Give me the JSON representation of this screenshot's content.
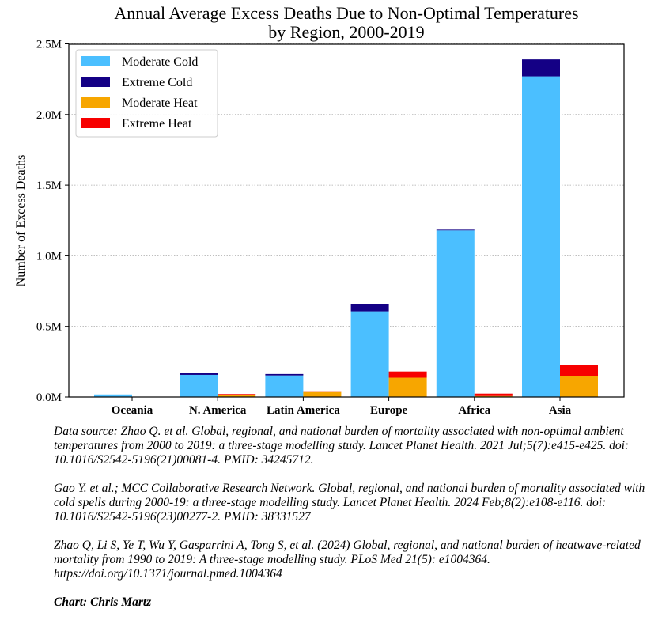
{
  "chart_data": {
    "type": "bar",
    "stacked": true,
    "title": "Annual Average Excess Deaths Due to Non-Optimal Temperatures\nby Region, 2000-2019",
    "title_lines": [
      "Annual Average Excess Deaths Due to Non-Optimal Temperatures",
      "by Region, 2000-2019"
    ],
    "xlabel": "",
    "ylabel": "Number of Excess Deaths",
    "ylim": [
      0,
      2500000
    ],
    "yticks": [
      0,
      500000,
      1000000,
      1500000,
      2000000,
      2500000
    ],
    "ytick_labels": [
      "0.0M",
      "0.5M",
      "1.0M",
      "1.5M",
      "2.0M",
      "2.5M"
    ],
    "grid": "horizontal dotted",
    "legend_position": "top-left",
    "categories": [
      "Oceania",
      "N. America",
      "Latin America",
      "Europe",
      "Africa",
      "Asia"
    ],
    "groups": [
      {
        "group": "cold",
        "series": [
          {
            "name": "Moderate Cold",
            "color": "#4bbfff",
            "values": [
              18000,
              157000,
              153000,
              607000,
              1180000,
              2270000
            ]
          },
          {
            "name": "Extreme Cold",
            "color": "#140085",
            "values": [
              0,
              13000,
              10000,
              50000,
              5000,
              120000
            ]
          }
        ]
      },
      {
        "group": "heat",
        "series": [
          {
            "name": "Moderate Heat",
            "color": "#f7a600",
            "values": [
              500,
              13000,
              35000,
              137000,
              7000,
              148000
            ]
          },
          {
            "name": "Extreme Heat",
            "color": "#f70000",
            "values": [
              200,
              8000,
              1000,
              44000,
              17000,
              78000
            ]
          }
        ]
      }
    ]
  },
  "notes": [
    "Data source: Zhao Q. et al. Global, regional, and national burden of mortality associated with non-optimal ambient temperatures from 2000 to 2019: a three-stage modelling study. Lancet Planet Health. 2021 Jul;5(7):e415-e425. doi: 10.1016/S2542-5196(21)00081-4. PMID: 34245712.",
    "Gao Y. et al.; MCC Collaborative Research Network. Global, regional, and national burden of mortality associated with cold spells during 2000-19: a three-stage modelling study. Lancet Planet Health. 2024 Feb;8(2):e108-e116. doi: 10.1016/S2542-5196(23)00277-2. PMID: 38331527",
    "Zhao Q, Li S, Ye T, Wu Y, Gasparrini A, Tong S, et al. (2024) Global, regional, and national burden of heatwave-related mortality from 1990 to 2019: A three-stage modelling study. PLoS Med 21(5): e1004364. https://doi.org/10.1371/journal.pmed.1004364"
  ],
  "credit": "Chart: Chris Martz"
}
